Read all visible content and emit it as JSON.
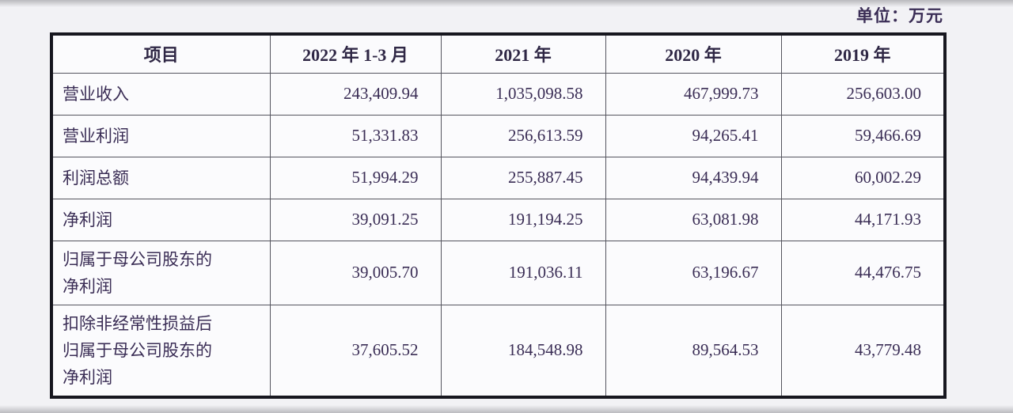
{
  "unit_label": "单位：万元",
  "table": {
    "columns": [
      "项目",
      "2022 年 1-3 月",
      "2021 年",
      "2020 年",
      "2019 年"
    ],
    "rows": [
      {
        "label": "营业收入",
        "values": [
          "243,409.94",
          "1,035,098.58",
          "467,999.73",
          "256,603.00"
        ]
      },
      {
        "label": "营业利润",
        "values": [
          "51,331.83",
          "256,613.59",
          "94,265.41",
          "59,466.69"
        ]
      },
      {
        "label": "利润总额",
        "values": [
          "51,994.29",
          "255,887.45",
          "94,439.94",
          "60,002.29"
        ]
      },
      {
        "label": "净利润",
        "values": [
          "39,091.25",
          "191,194.25",
          "63,081.98",
          "44,171.93"
        ]
      },
      {
        "label": "归属于母公司股东的净利润",
        "values": [
          "39,005.70",
          "191,036.11",
          "63,196.67",
          "44,476.75"
        ]
      },
      {
        "label": "扣除非经常性损益后归属于母公司股东的净利润",
        "values": [
          "37,605.52",
          "184,548.98",
          "89,564.53",
          "43,779.48"
        ]
      }
    ]
  },
  "colors": {
    "text": "#3a2d55",
    "header_text": "#2f2745",
    "outer_border": "#17171f",
    "grid_line": "#54545e",
    "cell_background": "#fbfbfd",
    "page_background": "#f2f2f5"
  }
}
